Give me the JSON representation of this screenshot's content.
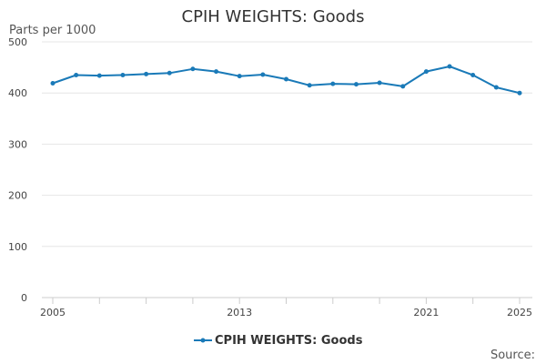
{
  "chart_data": {
    "type": "line",
    "title": "CPIH WEIGHTS: Goods",
    "ylabel": "Parts per 1000",
    "xlabel": "",
    "ylim": [
      0,
      500
    ],
    "yticks": [
      0,
      100,
      200,
      300,
      400,
      500
    ],
    "xtick_labels": [
      "2005",
      "2013",
      "2021",
      "2025"
    ],
    "x": [
      2005,
      2006,
      2007,
      2008,
      2009,
      2010,
      2011,
      2012,
      2013,
      2014,
      2015,
      2016,
      2017,
      2018,
      2019,
      2020,
      2021,
      2022,
      2023,
      2024,
      2025
    ],
    "series": [
      {
        "name": "CPIH WEIGHTS: Goods",
        "color": "#1a7ab8",
        "values": [
          419,
          435,
          434,
          435,
          437,
          439,
          447,
          442,
          433,
          436,
          427,
          415,
          418,
          417,
          420,
          413,
          442,
          452,
          435,
          411,
          400
        ]
      }
    ],
    "grid": true,
    "legend": "bottom-center",
    "source_label": "Source:"
  }
}
